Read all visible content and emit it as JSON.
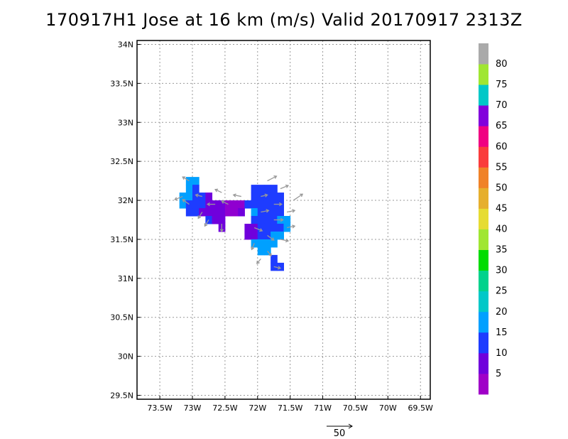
{
  "title": "170917H1 Jose at 16 km (m/s) Valid 20170917 2313Z",
  "chart_data": {
    "type": "heatmap",
    "title": "170917H1 Jose at 16 km (m/s) Valid 20170917 2313Z",
    "xlim": [
      -73.85,
      -69.35
    ],
    "ylim": [
      29.45,
      34.05
    ],
    "x_ticks": [
      -73.5,
      -73,
      -72.5,
      -72,
      -71.5,
      -71,
      -70.5,
      -70,
      -69.5
    ],
    "x_tick_labels": [
      "73.5W",
      "73W",
      "72.5W",
      "72W",
      "71.5W",
      "71W",
      "70.5W",
      "70W",
      "69.5W"
    ],
    "y_ticks": [
      29.5,
      30,
      30.5,
      31,
      31.5,
      32,
      32.5,
      33,
      33.5,
      34
    ],
    "y_tick_labels": [
      "29.5N",
      "30N",
      "30.5N",
      "31N",
      "31.5N",
      "32N",
      "32.5N",
      "33N",
      "33.5N",
      "34N"
    ],
    "grid": true,
    "colorbar": {
      "colors": [
        "#a000c8",
        "#7000dc",
        "#1e3cff",
        "#00a0ff",
        "#00c8c8",
        "#00d28c",
        "#00dc00",
        "#a0e632",
        "#e6dc32",
        "#e6af2d",
        "#f08228",
        "#fa3c3c",
        "#f00082",
        "#8200dc",
        "#00c8c8",
        "#a0e632",
        "#aaaaaa"
      ],
      "labels": [
        "5",
        "10",
        "15",
        "20",
        "25",
        "30",
        "35",
        "40",
        "45",
        "50",
        "55",
        "60",
        "65",
        "70",
        "75",
        "80"
      ]
    },
    "wind_field": {
      "cell_size_deg": [
        0.1,
        0.1
      ],
      "levels_ms": [
        2.5,
        7.5,
        12.5,
        17.5
      ],
      "cells": [
        [
          -73.05,
          32.25,
          3
        ],
        [
          -72.95,
          32.25,
          3
        ],
        [
          -73.05,
          32.15,
          3
        ],
        [
          -72.95,
          32.15,
          2
        ],
        [
          -73.15,
          32.05,
          3
        ],
        [
          -73.05,
          32.05,
          3
        ],
        [
          -72.95,
          32.05,
          2
        ],
        [
          -72.85,
          32.05,
          2
        ],
        [
          -72.75,
          32.05,
          1
        ],
        [
          -73.15,
          31.95,
          3
        ],
        [
          -73.05,
          31.95,
          2
        ],
        [
          -72.95,
          31.95,
          2
        ],
        [
          -72.85,
          31.95,
          2
        ],
        [
          -72.75,
          31.95,
          1
        ],
        [
          -72.65,
          31.95,
          1
        ],
        [
          -72.55,
          31.95,
          1
        ],
        [
          -72.45,
          31.95,
          0
        ],
        [
          -72.35,
          31.95,
          0
        ],
        [
          -72.25,
          31.95,
          0
        ],
        [
          -72.15,
          31.95,
          2
        ],
        [
          -73.05,
          31.85,
          2
        ],
        [
          -72.95,
          31.85,
          2
        ],
        [
          -72.85,
          31.85,
          1
        ],
        [
          -72.75,
          31.85,
          1
        ],
        [
          -72.65,
          31.85,
          1
        ],
        [
          -72.55,
          31.85,
          1
        ],
        [
          -72.45,
          31.85,
          0
        ],
        [
          -72.35,
          31.85,
          0
        ],
        [
          -72.25,
          31.85,
          1
        ],
        [
          -72.75,
          31.75,
          2
        ],
        [
          -72.65,
          31.75,
          1
        ],
        [
          -72.55,
          31.75,
          1
        ],
        [
          -72.55,
          31.65,
          1
        ],
        [
          -72.05,
          32.15,
          2
        ],
        [
          -71.95,
          32.15,
          2
        ],
        [
          -71.85,
          32.15,
          2
        ],
        [
          -71.75,
          32.15,
          2
        ],
        [
          -72.05,
          32.05,
          2
        ],
        [
          -71.95,
          32.05,
          2
        ],
        [
          -71.85,
          32.05,
          2
        ],
        [
          -71.75,
          32.05,
          2
        ],
        [
          -71.65,
          32.05,
          2
        ],
        [
          -72.05,
          31.95,
          2
        ],
        [
          -71.95,
          31.95,
          2
        ],
        [
          -71.85,
          31.95,
          2
        ],
        [
          -71.75,
          31.95,
          2
        ],
        [
          -71.65,
          31.95,
          2
        ],
        [
          -72.05,
          31.85,
          3
        ],
        [
          -71.95,
          31.85,
          2
        ],
        [
          -71.85,
          31.85,
          2
        ],
        [
          -71.75,
          31.85,
          2
        ],
        [
          -71.65,
          31.85,
          2
        ],
        [
          -72.05,
          31.75,
          2
        ],
        [
          -71.95,
          31.75,
          2
        ],
        [
          -71.85,
          31.75,
          2
        ],
        [
          -71.75,
          31.75,
          2
        ],
        [
          -71.65,
          31.75,
          3
        ],
        [
          -71.55,
          31.75,
          3
        ],
        [
          -72.15,
          31.65,
          1
        ],
        [
          -72.05,
          31.65,
          1
        ],
        [
          -71.95,
          31.65,
          2
        ],
        [
          -71.85,
          31.65,
          2
        ],
        [
          -71.75,
          31.65,
          2
        ],
        [
          -71.65,
          31.65,
          2
        ],
        [
          -71.55,
          31.65,
          3
        ],
        [
          -72.15,
          31.55,
          1
        ],
        [
          -72.05,
          31.55,
          1
        ],
        [
          -71.95,
          31.55,
          2
        ],
        [
          -71.85,
          31.55,
          2
        ],
        [
          -71.75,
          31.55,
          3
        ],
        [
          -71.65,
          31.55,
          3
        ],
        [
          -72.05,
          31.45,
          3
        ],
        [
          -71.95,
          31.45,
          3
        ],
        [
          -71.85,
          31.45,
          3
        ],
        [
          -71.75,
          31.45,
          3
        ],
        [
          -71.95,
          31.35,
          3
        ],
        [
          -71.85,
          31.35,
          3
        ],
        [
          -71.75,
          31.25,
          2
        ],
        [
          -71.75,
          31.15,
          2
        ],
        [
          -71.65,
          31.15,
          2
        ]
      ]
    },
    "wind_vectors": {
      "reference": {
        "speed_ms": 50,
        "label": "50"
      },
      "vectors": [
        [
          -73.05,
          32.25,
          -0.1,
          0.05
        ],
        [
          -73.15,
          32.05,
          -0.12,
          -0.04
        ],
        [
          -73.05,
          31.95,
          -0.1,
          0.06
        ],
        [
          -72.85,
          32.05,
          -0.1,
          0.02
        ],
        [
          -72.85,
          31.85,
          -0.06,
          -0.08
        ],
        [
          -72.65,
          31.95,
          -0.12,
          0.0
        ],
        [
          -72.45,
          31.95,
          -0.1,
          0.04
        ],
        [
          -72.25,
          32.05,
          -0.12,
          0.02
        ],
        [
          -72.55,
          32.1,
          -0.1,
          0.04
        ],
        [
          -72.75,
          31.75,
          -0.06,
          -0.08
        ],
        [
          -72.55,
          31.7,
          0.0,
          -0.1
        ],
        [
          -71.85,
          32.25,
          0.14,
          0.06
        ],
        [
          -71.65,
          32.15,
          0.12,
          0.04
        ],
        [
          -71.45,
          32.0,
          0.14,
          0.08
        ],
        [
          -71.95,
          32.05,
          0.1,
          0.02
        ],
        [
          -71.75,
          31.95,
          0.12,
          0.0
        ],
        [
          -71.55,
          31.85,
          0.12,
          0.02
        ],
        [
          -71.95,
          31.85,
          0.12,
          0.02
        ],
        [
          -71.75,
          31.75,
          0.14,
          0.0
        ],
        [
          -71.55,
          31.65,
          0.12,
          0.02
        ],
        [
          -72.05,
          31.65,
          0.12,
          -0.04
        ],
        [
          -71.85,
          31.55,
          0.1,
          -0.06
        ],
        [
          -71.65,
          31.5,
          0.12,
          -0.02
        ],
        [
          -72.05,
          31.45,
          -0.04,
          -0.08
        ],
        [
          -71.85,
          31.35,
          0.06,
          -0.06
        ],
        [
          -71.95,
          31.25,
          -0.06,
          -0.06
        ],
        [
          -71.75,
          31.15,
          0.1,
          -0.02
        ]
      ]
    }
  }
}
